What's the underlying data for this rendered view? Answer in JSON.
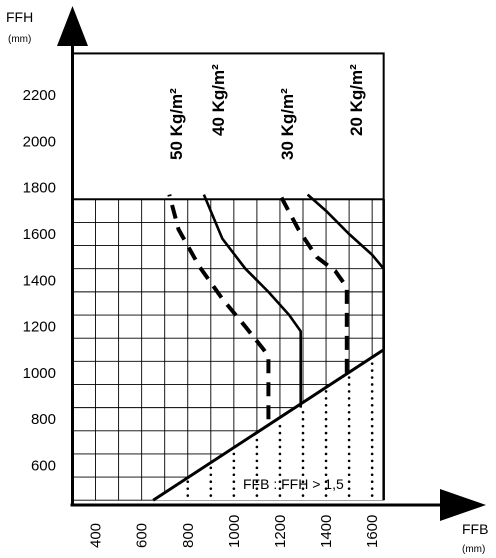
{
  "chart_data": {
    "type": "line",
    "x_axis": {
      "label": "FFB",
      "unit": "(mm)",
      "ticks": [
        400,
        600,
        800,
        1000,
        1200,
        1400,
        1600
      ],
      "range": [
        280,
        1680
      ]
    },
    "y_axis": {
      "label": "FFH",
      "unit": "(mm)",
      "ticks": [
        600,
        800,
        1000,
        1200,
        1400,
        1600,
        1800,
        2000,
        2200
      ],
      "range": [
        420,
        2380
      ]
    },
    "grid": {
      "x_step": 100,
      "y_step": 100,
      "x_extent": [
        300,
        1650
      ],
      "y_extent": [
        450,
        1750
      ]
    },
    "boundaries": {
      "upper_box": {
        "x": [
          300,
          1650
        ],
        "y": [
          1750,
          2380
        ]
      },
      "ratio_line": {
        "x": [
          650,
          1650
        ],
        "y": [
          450,
          1100
        ]
      }
    },
    "series": [
      {
        "name": "50 Kg/m²",
        "style": "dashed",
        "x": [
          1150,
          1150,
          1130,
          1050,
          950,
          850,
          760,
          720
        ],
        "y": [
          800,
          1070,
          1100,
          1200,
          1320,
          1460,
          1620,
          1770
        ]
      },
      {
        "name": "40 Kg/m²",
        "style": "solid",
        "x": [
          1290,
          1290,
          1240,
          1150,
          1050,
          950,
          870
        ],
        "y": [
          850,
          1180,
          1250,
          1350,
          1450,
          1580,
          1770
        ]
      },
      {
        "name": "30 Kg/m²",
        "style": "dashed",
        "x": [
          1490,
          1490,
          1440,
          1360,
          1280,
          1200
        ],
        "y": [
          1000,
          1370,
          1440,
          1500,
          1620,
          1770
        ]
      },
      {
        "name": "20 Kg/m²",
        "style": "solid",
        "x": [
          1650,
          1650,
          1600,
          1500,
          1400,
          1320
        ],
        "y": [
          1100,
          1450,
          1510,
          1600,
          1700,
          1770
        ]
      }
    ],
    "annotation": "FFB : FFH > 1,5"
  }
}
